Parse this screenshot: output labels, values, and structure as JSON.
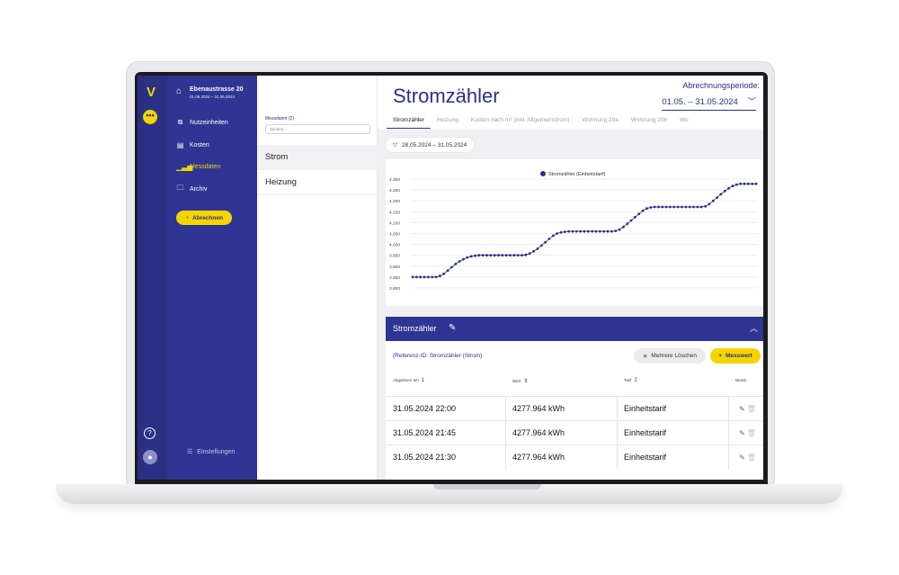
{
  "property": {
    "name": "Ebenaustrasse 20",
    "date_range": "01.05.2024 – 31.05.2024"
  },
  "nav": [
    {
      "label": "Nutzeinheiten",
      "icon": "layers-icon",
      "active": false
    },
    {
      "label": "Kosten",
      "icon": "document-icon",
      "active": false
    },
    {
      "label": "Messdaten",
      "icon": "bar-chart-icon",
      "active": true
    },
    {
      "label": "Archiv",
      "icon": "folder-icon",
      "active": false
    }
  ],
  "abrechnen_label": "Abrechnen",
  "settings_label": "Einstellungen",
  "list_panel": {
    "heading": "Messdaten (2)",
    "search_placeholder": "Suchen...",
    "items": [
      "Strom",
      "Heizung"
    ]
  },
  "header": {
    "title": "Stromzähler",
    "period_label": "Abrechnungsperiode:",
    "period_value": "01.05. – 31.05.2024"
  },
  "tabs": [
    "Stromzähler",
    "Heizung",
    "Kosten nach m² (inkl. Allgemeinstrom)",
    "Wohnung 20a",
    "Wohnung 20b",
    "Wo"
  ],
  "filter_chip": "28.05.2024 – 31.05.2024",
  "chart_data": {
    "type": "line",
    "series": [
      {
        "name": "Stromzähler (Einheitstarif)",
        "color": "#2a3185"
      }
    ],
    "y_ticks": [
      "4.300",
      "4.250",
      "4.200",
      "4.150",
      "4.100",
      "4.050",
      "4.000",
      "3.950",
      "3.900",
      "3.850",
      "3.800"
    ],
    "ylim": [
      3800,
      4300
    ],
    "grid": true,
    "legend": "top",
    "points": [
      3850,
      3850,
      3850,
      3850,
      3850,
      3850,
      3850,
      3855,
      3865,
      3880,
      3895,
      3910,
      3922,
      3932,
      3940,
      3945,
      3948,
      3950,
      3950,
      3950,
      3950,
      3950,
      3950,
      3950,
      3950,
      3950,
      3950,
      3950,
      3950,
      3952,
      3958,
      3968,
      3980,
      3995,
      4010,
      4025,
      4040,
      4050,
      4055,
      4058,
      4060,
      4060,
      4060,
      4060,
      4060,
      4060,
      4060,
      4060,
      4060,
      4060,
      4060,
      4060,
      4062,
      4068,
      4080,
      4095,
      4110,
      4125,
      4140,
      4155,
      4165,
      4170,
      4172,
      4172,
      4172,
      4172,
      4172,
      4172,
      4172,
      4172,
      4172,
      4172,
      4172,
      4172,
      4172,
      4175,
      4185,
      4200,
      4215,
      4230,
      4245,
      4258,
      4268,
      4275,
      4278,
      4278,
      4278,
      4278,
      4278
    ]
  },
  "data_card": {
    "title": "Stromzähler",
    "ref_id": "(Referenz-ID: Stromzähler (Strom)",
    "delete_label": "Mehrere Löschen",
    "add_label": "Messwert",
    "columns": [
      {
        "label": "Abgelesen am",
        "badge": "1"
      },
      {
        "label": "Wert",
        "badge": "⇕"
      },
      {
        "label": "Tarif",
        "badge": "2"
      },
      {
        "label": "Bearb.",
        "badge": ""
      }
    ],
    "rows": [
      {
        "date": "31.05.2024 22:00",
        "value": "4277.964 kWh",
        "tariff": "Einheitstarif"
      },
      {
        "date": "31.05.2024 21:45",
        "value": "4277.964 kWh",
        "tariff": "Einheitstarif"
      },
      {
        "date": "31.05.2024 21:30",
        "value": "4277.964 kWh",
        "tariff": "Einheitstarif"
      }
    ]
  }
}
